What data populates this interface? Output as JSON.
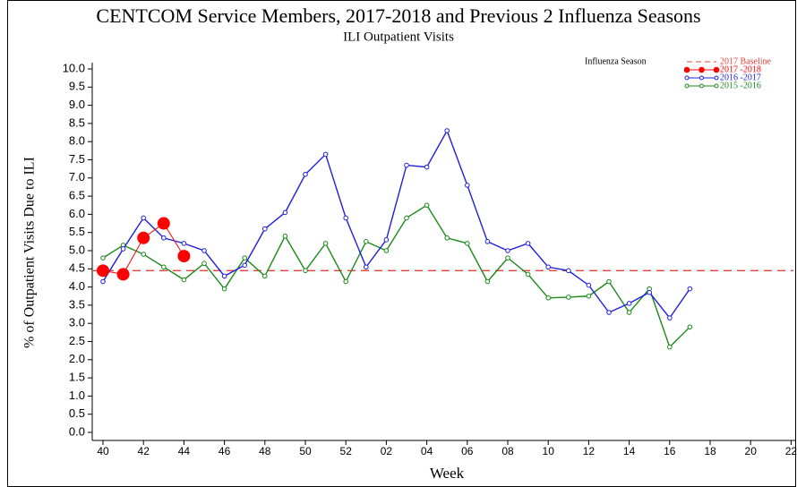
{
  "chart_data": {
    "type": "line",
    "title": "CENTCOM Service Members, 2017-2018 and Previous 2 Influenza Seasons",
    "subtitle": "ILI Outpatient Visits",
    "x_label": "Week",
    "y_label": "% of Outpatient Visits Due to ILI",
    "legend_title": "Influenza Season",
    "legend_position": "top-right",
    "categories": [
      "40",
      null,
      "42",
      null,
      "44",
      null,
      "46",
      null,
      "48",
      null,
      "50",
      null,
      "52",
      null,
      "02",
      null,
      "04",
      null,
      "06",
      null,
      "08",
      null,
      "10",
      null,
      "12",
      null,
      "14",
      null,
      "16",
      null,
      "18",
      null,
      "20",
      null,
      "22"
    ],
    "baseline": {
      "name": "2017 Baseline",
      "value": 4.45,
      "color": "#e8403a"
    },
    "series": [
      {
        "name": "2017 -2018",
        "color": "#ff0000",
        "marker": "filled",
        "values": [
          4.45,
          4.35,
          5.35,
          5.75,
          4.85,
          null,
          null,
          null,
          null,
          null,
          null,
          null,
          null,
          null,
          null,
          null,
          null,
          null,
          null,
          null,
          null,
          null,
          null,
          null,
          null,
          null,
          null,
          null,
          null,
          null,
          null,
          null,
          null,
          null,
          null
        ]
      },
      {
        "name": "2016 -2017",
        "color": "#1f1fe0",
        "marker": "open",
        "values": [
          4.15,
          5.05,
          5.9,
          5.35,
          5.2,
          5.0,
          4.3,
          4.6,
          5.6,
          6.05,
          7.1,
          7.65,
          5.9,
          4.55,
          5.3,
          7.35,
          7.3,
          8.3,
          6.8,
          5.25,
          5.0,
          5.2,
          4.55,
          4.45,
          4.05,
          3.3,
          3.55,
          3.85,
          3.15,
          3.95,
          null,
          null,
          null,
          null,
          null
        ]
      },
      {
        "name": "2015 -2016",
        "color": "#1a8a1a",
        "marker": "open",
        "values": [
          4.8,
          5.15,
          4.9,
          4.55,
          4.2,
          4.65,
          3.95,
          4.8,
          4.3,
          5.4,
          4.45,
          5.2,
          4.15,
          5.25,
          5.0,
          5.9,
          6.25,
          5.35,
          5.2,
          4.15,
          4.8,
          4.35,
          3.7,
          3.72,
          3.75,
          4.15,
          3.3,
          3.95,
          2.35,
          2.9,
          null,
          null,
          null,
          null,
          null
        ]
      }
    ],
    "ylim": [
      0,
      10
    ],
    "yticks": [
      {
        "value": 0,
        "label": "0.0"
      },
      {
        "value": 0.5,
        "label": "0.5"
      },
      {
        "value": 1,
        "label": "1.0"
      },
      {
        "value": 1.5,
        "label": "1.5"
      },
      {
        "value": 2,
        "label": "2.0"
      },
      {
        "value": 2.5,
        "label": "2.5"
      },
      {
        "value": 3,
        "label": "3.0"
      },
      {
        "value": 3.5,
        "label": "3.5"
      },
      {
        "value": 4,
        "label": "4.0"
      },
      {
        "value": 4.5,
        "label": "4.5"
      },
      {
        "value": 5,
        "label": "5.0"
      },
      {
        "value": 5.5,
        "label": "5.5"
      },
      {
        "value": 6,
        "label": "6.0"
      },
      {
        "value": 6.5,
        "label": "6.5"
      },
      {
        "value": 7,
        "label": "7.0"
      },
      {
        "value": 7.5,
        "label": "7.5"
      },
      {
        "value": 8,
        "label": "8.0"
      },
      {
        "value": 8.5,
        "label": "8.5"
      },
      {
        "value": 9,
        "label": "9.0"
      },
      {
        "value": 9.5,
        "label": "9.5"
      },
      {
        "value": 10,
        "label": "10.0"
      }
    ],
    "grid": false
  }
}
